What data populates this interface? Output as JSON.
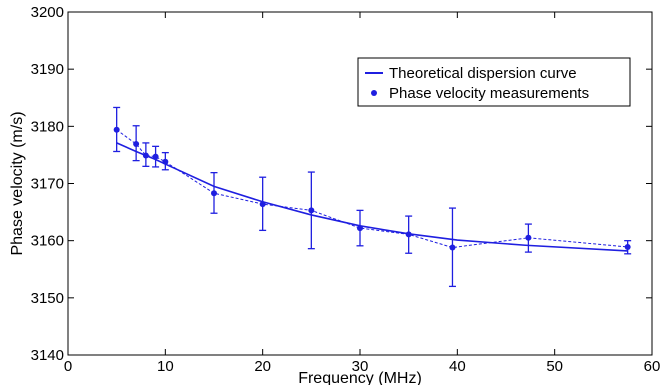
{
  "chart_data": {
    "type": "line",
    "title": "",
    "xlabel": "Frequency (MHz)",
    "ylabel": "Phase velocity (m/s)",
    "xlim": [
      0,
      60
    ],
    "ylim": [
      3140,
      3200
    ],
    "xticks": [
      0,
      10,
      20,
      30,
      40,
      50,
      60
    ],
    "yticks": [
      3140,
      3150,
      3160,
      3170,
      3180,
      3190,
      3200
    ],
    "grid": false,
    "legend_position": "top-right",
    "colors": {
      "series": "#1f1fe0",
      "axis": "#000000"
    },
    "series": [
      {
        "name": "Theoretical dispersion curve",
        "style": "solid-line",
        "x": [
          5,
          7,
          8,
          9,
          10,
          15,
          20,
          25,
          30,
          35,
          40,
          47,
          57.5
        ],
        "y": [
          3177.1,
          3175.6,
          3174.9,
          3174.2,
          3173.4,
          3169.5,
          3166.8,
          3164.5,
          3162.6,
          3161.2,
          3160.1,
          3159.2,
          3158.2
        ]
      },
      {
        "name": "Phase velocity measurements",
        "style": "markers-dashed",
        "x": [
          5,
          7,
          8,
          9,
          10,
          15,
          20,
          25,
          30,
          35,
          39.5,
          47.3,
          57.5
        ],
        "y": [
          3179.4,
          3176.9,
          3174.9,
          3174.7,
          3173.8,
          3168.3,
          3166.4,
          3165.3,
          3162.2,
          3161.1,
          3158.8,
          3160.5,
          3158.9
        ],
        "err_low": [
          3175.6,
          3174.0,
          3173.0,
          3172.9,
          3172.4,
          3164.8,
          3161.8,
          3158.6,
          3159.1,
          3157.8,
          3152.0,
          3158.0,
          3157.7
        ],
        "err_high": [
          3183.3,
          3180.1,
          3177.1,
          3176.5,
          3175.4,
          3171.9,
          3171.1,
          3172.0,
          3165.3,
          3164.3,
          3165.7,
          3162.9,
          3160.0
        ]
      }
    ]
  }
}
